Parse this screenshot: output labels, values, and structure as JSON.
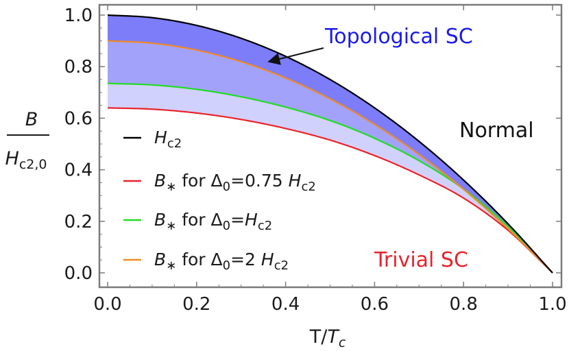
{
  "chart_data": {
    "type": "line",
    "xlabel_main": "T/",
    "xlabel_italic": "T",
    "xlabel_sub": "c",
    "ylabel_num": "B",
    "ylabel_den": "H",
    "ylabel_den_sub": "c2,0",
    "xlim": [
      0,
      1
    ],
    "ylim": [
      0,
      1.0
    ],
    "x_ticks": [
      "0.0",
      "0.2",
      "0.4",
      "0.6",
      "0.8",
      "1.0"
    ],
    "y_ticks": [
      "0.0",
      "0.2",
      "0.4",
      "0.6",
      "0.8",
      "1.0"
    ],
    "grid": false,
    "legend_position": "left",
    "x": [
      0,
      0.1,
      0.2,
      0.3,
      0.4,
      0.5,
      0.6,
      0.7,
      0.8,
      0.9,
      1.0
    ],
    "series": [
      {
        "key": "hc2",
        "color": "#000000",
        "values": [
          1.0,
          0.99,
          0.96,
          0.91,
          0.84,
          0.75,
          0.64,
          0.51,
          0.36,
          0.19,
          0.0
        ]
      },
      {
        "key": "b075",
        "color": "#e8232a",
        "values": [
          0.64,
          0.635,
          0.62,
          0.595,
          0.56,
          0.515,
          0.455,
          0.38,
          0.29,
          0.165,
          0.0
        ]
      },
      {
        "key": "b1",
        "color": "#22dd22",
        "values": [
          0.735,
          0.729,
          0.712,
          0.683,
          0.643,
          0.591,
          0.522,
          0.435,
          0.325,
          0.18,
          0.0
        ]
      },
      {
        "key": "b2",
        "color": "#f08a24",
        "values": [
          0.9,
          0.891,
          0.864,
          0.819,
          0.756,
          0.675,
          0.576,
          0.459,
          0.324,
          0.171,
          0.0
        ]
      }
    ],
    "fill_colors": {
      "top": "#7d7dfa",
      "middle": "#a2a2fb",
      "bottom": "#d1d1fd"
    },
    "legend": [
      {
        "series": "hc2",
        "pre": "",
        "var": "H",
        "sub": "c2",
        "mid": "",
        "delta_sub": "",
        "post": "",
        "post_var": "",
        "post_sub": ""
      },
      {
        "series": "b075",
        "pre": "",
        "var": "B",
        "sub": "∗",
        "mid": " for Δ",
        "delta_sub": "0",
        "post": "=0.75 ",
        "post_var": "H",
        "post_sub": "c2"
      },
      {
        "series": "b1",
        "pre": "",
        "var": "B",
        "sub": "∗",
        "mid": " for Δ",
        "delta_sub": "0",
        "post": "=",
        "post_var": "H",
        "post_sub": "c2"
      },
      {
        "series": "b2",
        "pre": "",
        "var": "B",
        "sub": "∗",
        "mid": " for Δ",
        "delta_sub": "0",
        "post": "=2 ",
        "post_var": "H",
        "post_sub": "c2"
      }
    ],
    "annotations": {
      "topological": {
        "text": "Topological SC",
        "color": "#1b1be8"
      },
      "normal": {
        "text": "Normal",
        "color": "#111111"
      },
      "trivial": {
        "text": "Trivial SC",
        "color": "#e8232a"
      }
    }
  }
}
